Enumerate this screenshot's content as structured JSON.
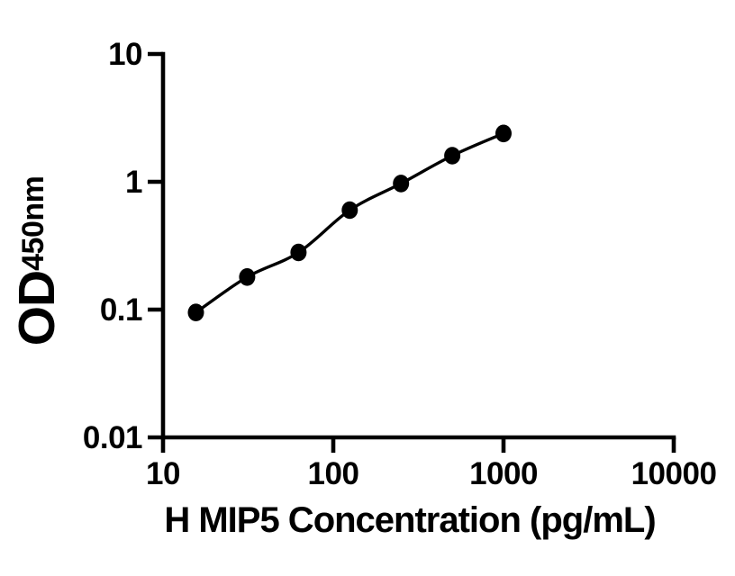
{
  "figure": {
    "background_color": "#ffffff",
    "ink_color": "#000000"
  },
  "chart_data": {
    "type": "scatter",
    "title": "",
    "xlabel": "H MIP5 Concentration (pg/mL)",
    "ylabel": "OD450nm",
    "ylabel_main": "OD",
    "ylabel_sub": "450nm",
    "x_scale": "log",
    "y_scale": "log",
    "xlim": [
      10,
      10000
    ],
    "ylim": [
      0.01,
      10
    ],
    "x_ticks": [
      10,
      100,
      1000,
      10000
    ],
    "x_tick_labels": [
      "10",
      "100",
      "1000",
      "10000"
    ],
    "y_ticks": [
      10,
      1,
      0.1,
      0.01
    ],
    "y_tick_labels": [
      "10",
      "1",
      "0.1",
      "0.01"
    ],
    "grid": false,
    "legend": "none",
    "series": [
      {
        "marker": "filled-circle",
        "marker_color": "#000000",
        "line": "smooth",
        "line_color": "#000000",
        "points": [
          {
            "x": 15.6,
            "y": 0.095
          },
          {
            "x": 31.2,
            "y": 0.18
          },
          {
            "x": 62.5,
            "y": 0.28
          },
          {
            "x": 125,
            "y": 0.6
          },
          {
            "x": 250,
            "y": 0.97
          },
          {
            "x": 500,
            "y": 1.6
          },
          {
            "x": 1000,
            "y": 2.39
          }
        ]
      }
    ]
  }
}
